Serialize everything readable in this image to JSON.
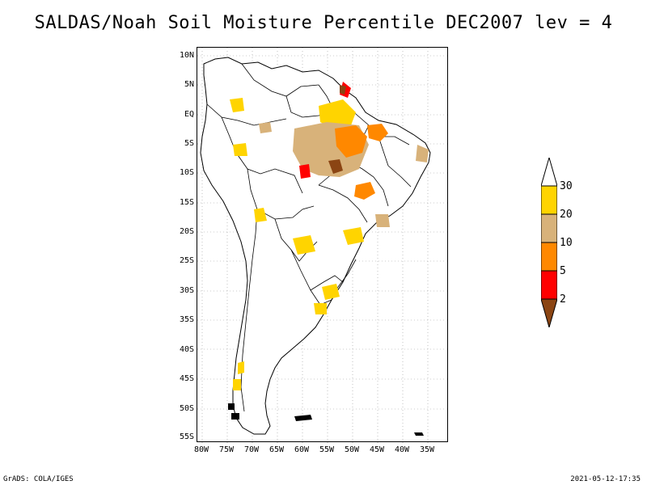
{
  "title": "SALDAS/Noah Soil Moisture Percentile DEC2007 lev = 4",
  "latitude_labels": [
    "10N",
    "5N",
    "EQ",
    "5S",
    "10S",
    "15S",
    "20S",
    "25S",
    "30S",
    "35S",
    "40S",
    "45S",
    "50S",
    "55S"
  ],
  "longitude_labels": [
    "80W",
    "75W",
    "70W",
    "65W",
    "60W",
    "55W",
    "50W",
    "45W",
    "40W",
    "35W"
  ],
  "colorbar": {
    "levels": [
      "30",
      "20",
      "10",
      "5",
      "2"
    ],
    "colors": {
      "above_30": "#ffffff",
      "20_30": "#ffd400",
      "10_20": "#d8b27a",
      "5_10": "#ff8800",
      "2_5": "#ff0000",
      "below_2": "#8b4513"
    }
  },
  "footer": {
    "left": "GrADS: COLA/IGES",
    "right": "2021-05-12-17:35"
  }
}
